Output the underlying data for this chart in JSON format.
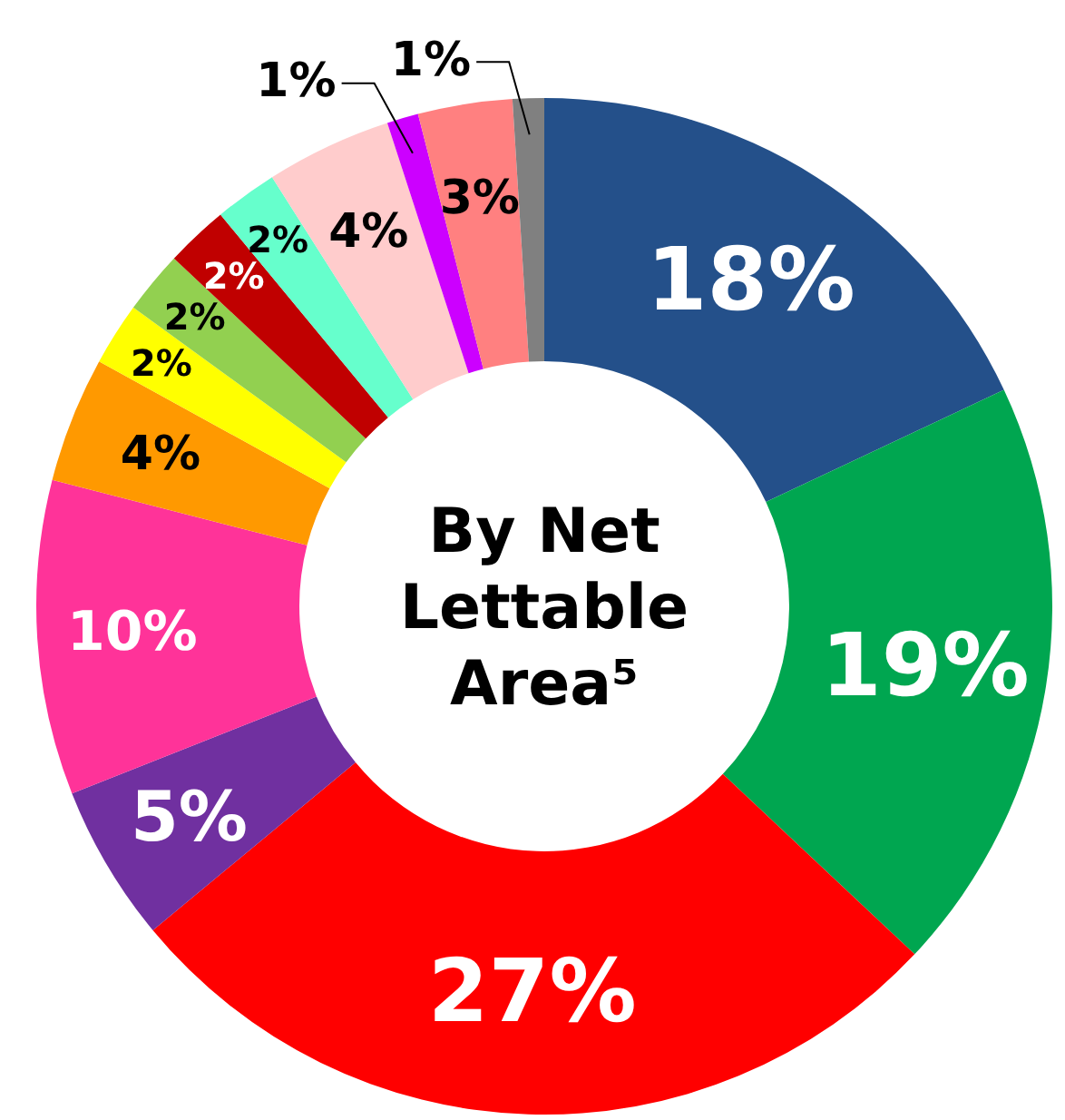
{
  "chart_data": {
    "type": "donut",
    "title": "By Net Lettable Area⁵",
    "categories": [
      null,
      null,
      null,
      null,
      null,
      null,
      null,
      null,
      null,
      null,
      null,
      null,
      null,
      null
    ],
    "values": [
      18,
      19,
      27,
      5,
      10,
      4,
      2,
      2,
      2,
      2,
      4,
      1,
      3,
      1
    ],
    "value_labels": [
      "18%",
      "19%",
      "27%",
      "5%",
      "10%",
      "4%",
      "2%",
      "2%",
      "2%",
      "2%",
      "4%",
      "1%",
      "3%",
      "1%"
    ],
    "colors": [
      "#24508a",
      "#00a650",
      "#ff0000",
      "#7030a0",
      "#ff3399",
      "#ff9900",
      "#ffff00",
      "#92d050",
      "#c00000",
      "#66ffcc",
      "#ffcccc",
      "#cc00ff",
      "#ff8080",
      "#808080"
    ]
  }
}
